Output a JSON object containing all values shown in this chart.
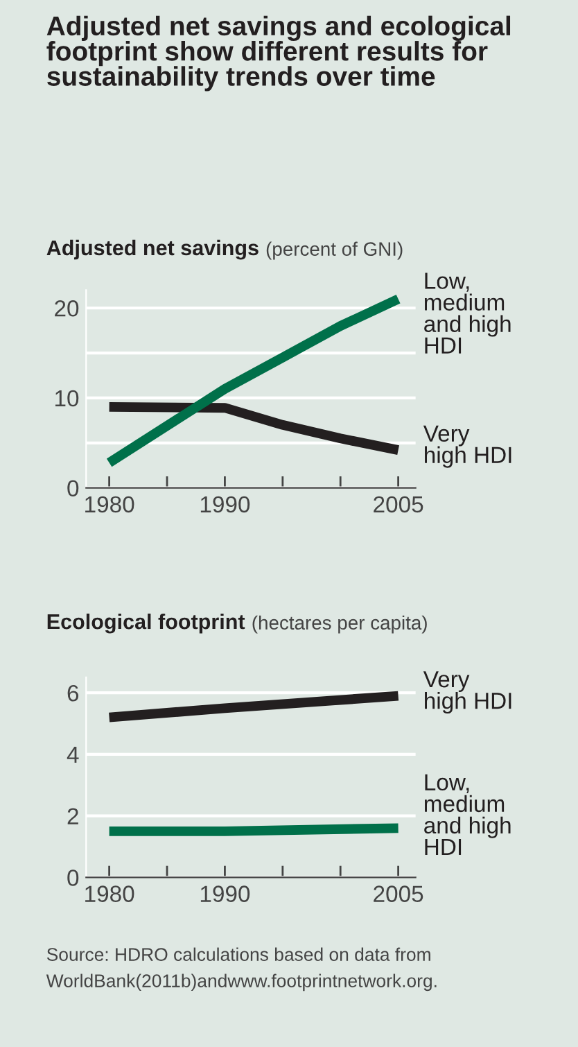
{
  "chart_data": [
    {
      "type": "line",
      "title": "Adjusted net savings",
      "subtitle": "(percent of GNI)",
      "annotations": [
        "Adjusted net savings and ecological footprint show different results for sustainability trends over time"
      ],
      "x": [
        1980,
        1990,
        1995,
        2000,
        2005
      ],
      "series": [
        {
          "name": "Very high HDI",
          "color": "#231f20",
          "values": [
            9,
            8.9,
            7,
            5.5,
            4.2
          ]
        },
        {
          "name": "Low, medium and high HDI",
          "color": "#00704a",
          "values": [
            2.8,
            11,
            14.5,
            18,
            21
          ]
        }
      ],
      "xlim": [
        1978,
        2006.5
      ],
      "xticks": [
        1980,
        {
          "value": 1985,
          "label": null
        },
        1990,
        {
          "value": 1995,
          "label": null
        },
        {
          "value": 2000,
          "label": null
        },
        2005
      ],
      "ylim": [
        0,
        22
      ],
      "yticks": [
        0,
        {
          "value": 5,
          "label": null
        },
        10,
        {
          "value": 15,
          "label": null
        },
        20
      ],
      "grid": "y",
      "marker": "none",
      "line_style": "solid"
    },
    {
      "type": "line",
      "title": "Ecological footprint",
      "subtitle": "(hectares per capita)",
      "annotations": [
        "Source: HDRO calculations based on data from WorldBank(2011b)andwww.footprintnetwork.org."
      ],
      "x": [
        1980,
        1990,
        2005
      ],
      "series": [
        {
          "name": "Very high HDI",
          "color": "#231f20",
          "values": [
            5.2,
            5.5,
            5.9
          ]
        },
        {
          "name": "Low, medium and high HDI",
          "color": "#00704a",
          "values": [
            1.5,
            1.5,
            1.6
          ]
        }
      ],
      "xlim": [
        1978,
        2006.5
      ],
      "xticks": [
        1980,
        {
          "value": 1985,
          "label": null
        },
        1990,
        {
          "value": 1995,
          "label": null
        },
        {
          "value": 2000,
          "label": null
        },
        2005
      ],
      "ylim": [
        0,
        6.5
      ],
      "yticks": [
        0,
        2,
        4,
        6
      ],
      "grid": "y",
      "marker": "none",
      "line_style": "solid"
    }
  ]
}
